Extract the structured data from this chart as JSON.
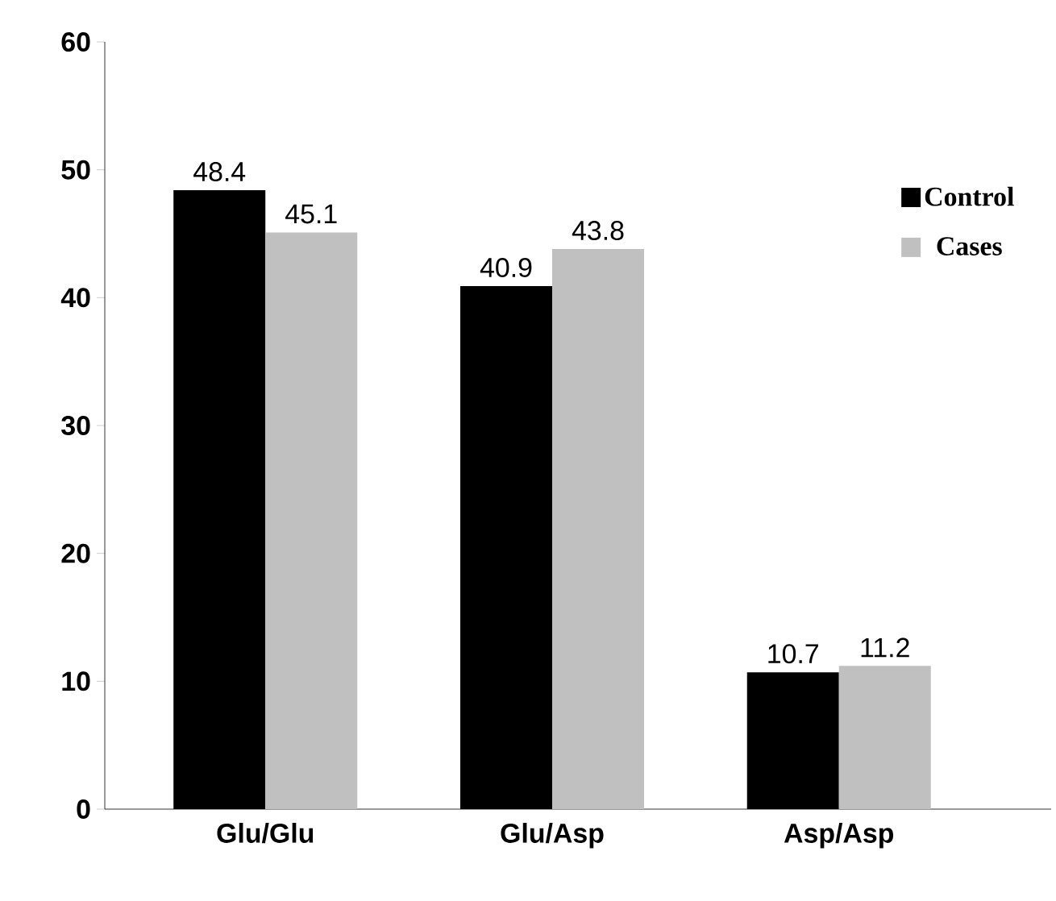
{
  "chart_data": {
    "type": "bar",
    "categories": [
      "Glu/Glu",
      "Glu/Asp",
      "Asp/Asp"
    ],
    "series": [
      {
        "name": "Control",
        "color": "#000000",
        "values": [
          48.4,
          40.9,
          10.7
        ]
      },
      {
        "name": "Cases",
        "color": "#c0c0c0",
        "values": [
          45.1,
          43.8,
          11.2
        ]
      }
    ],
    "ylim": [
      0,
      60
    ],
    "yticks": [
      0,
      10,
      20,
      30,
      40,
      50,
      60
    ],
    "data_labels": true,
    "grid": false,
    "legend": "top right"
  }
}
